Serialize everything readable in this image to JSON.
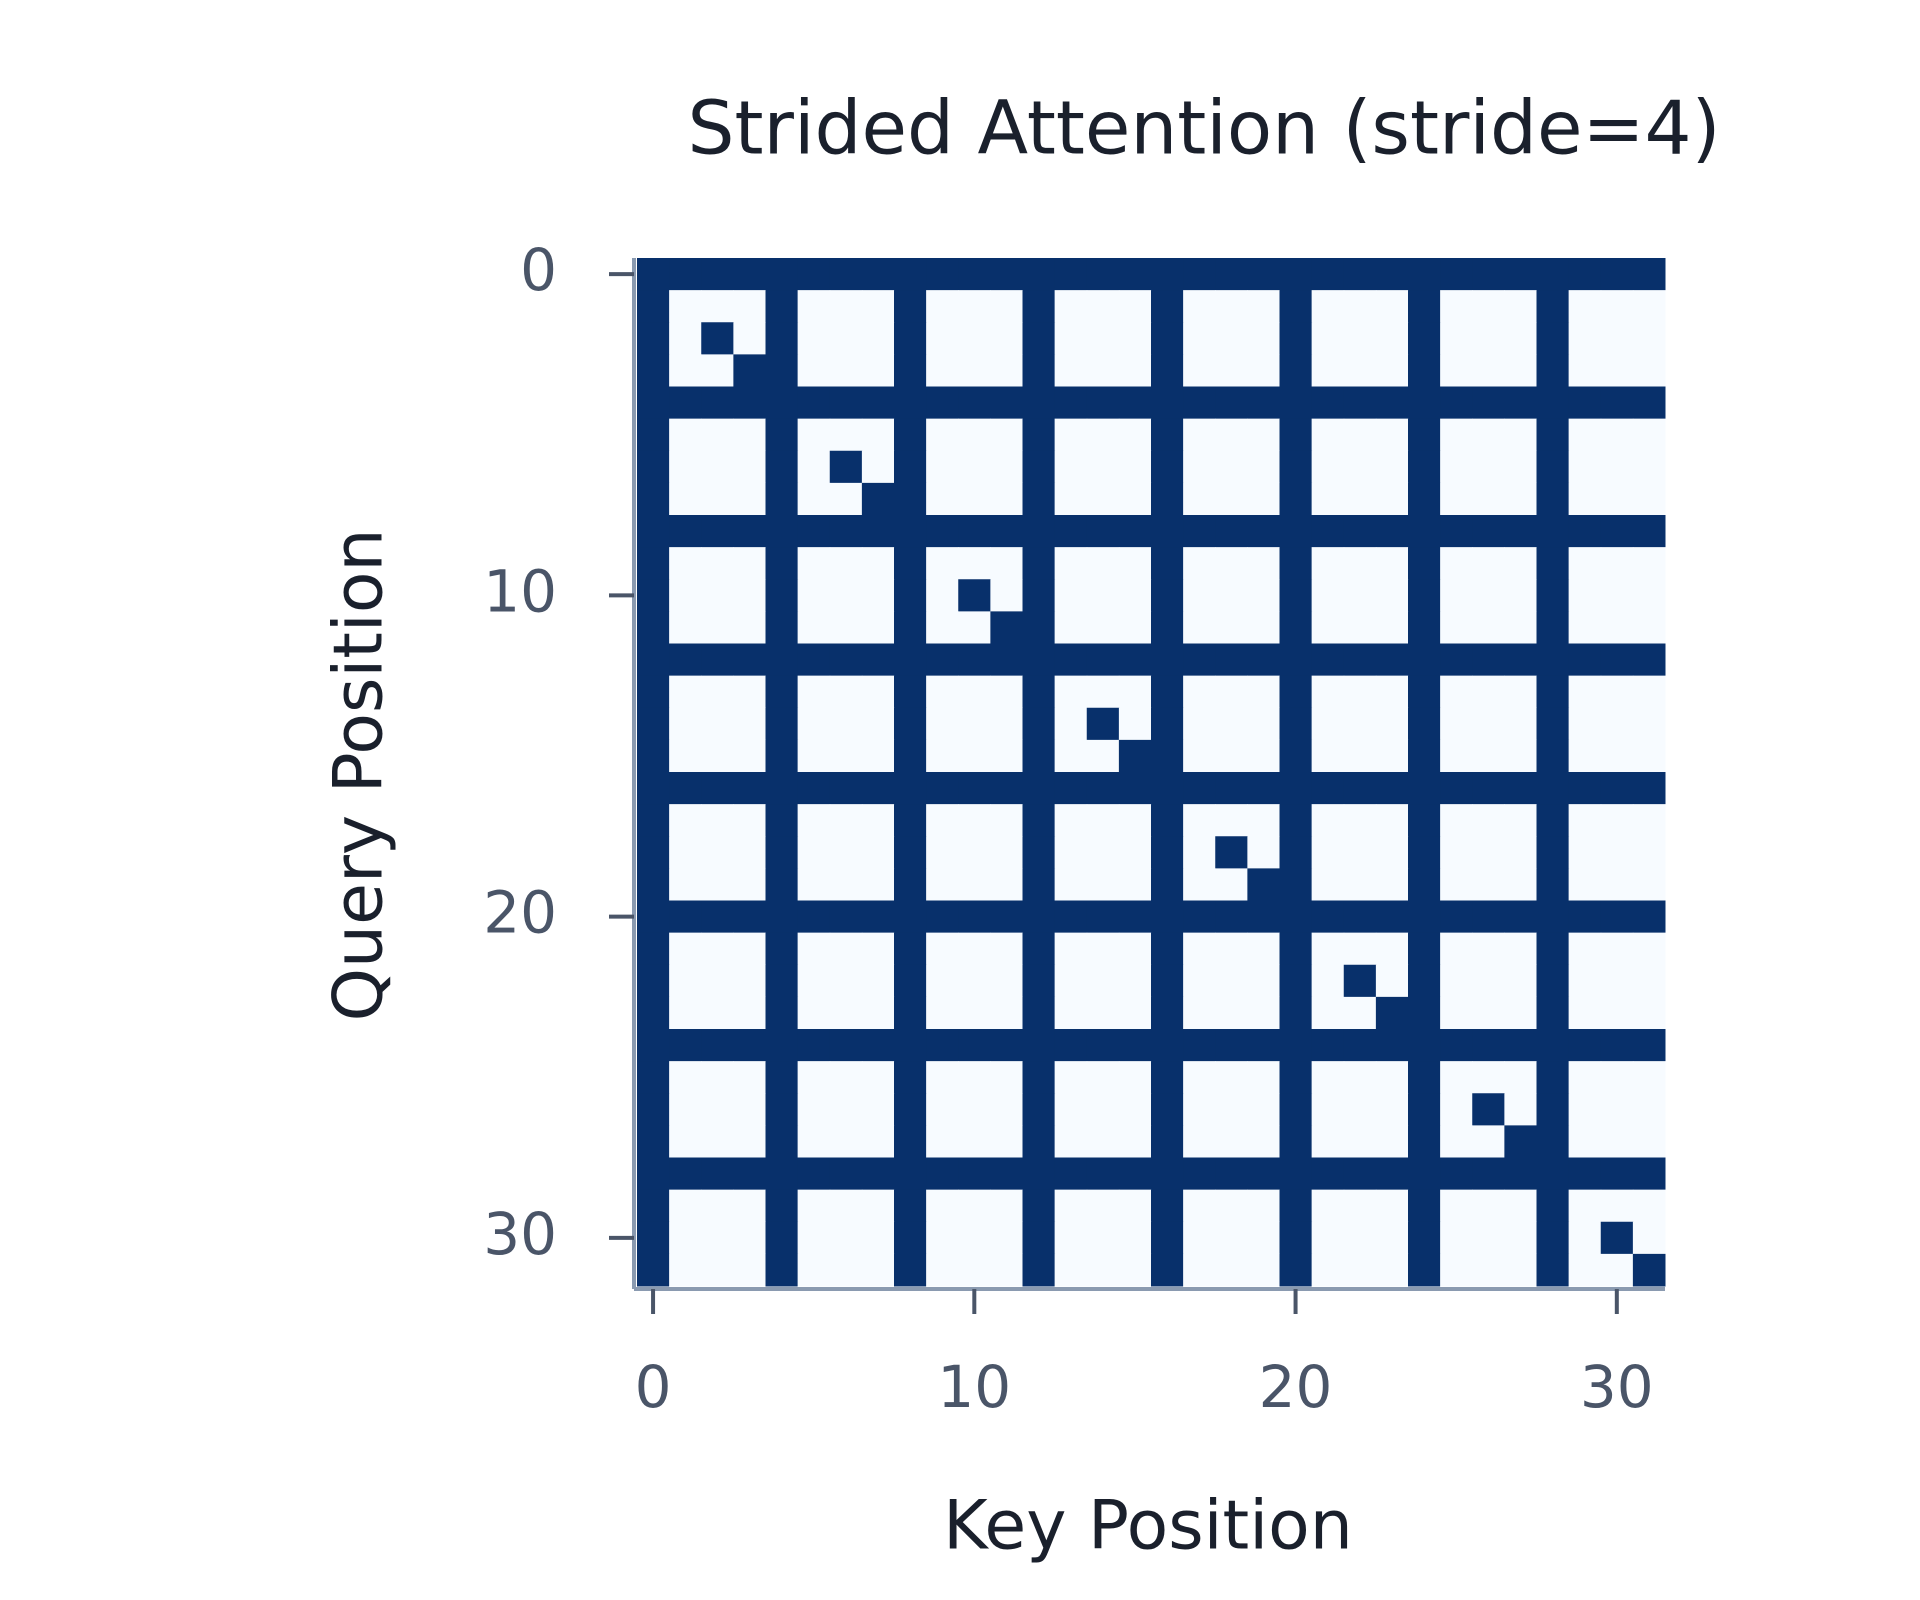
{
  "chart_data": {
    "type": "heatmap",
    "title": "Strided Attention (stride=4)",
    "x_label": "Key Position",
    "y_label": "Query Position",
    "xlim": [
      -0.5,
      31.5
    ],
    "ylim": [
      31.5,
      -0.5
    ],
    "xticks": [
      0,
      10,
      20,
      30
    ],
    "yticks": [
      0,
      10,
      20,
      30
    ],
    "colors": [
      "#f7fbff",
      "#08306b"
    ],
    "z": [
      [
        1,
        1,
        1,
        1,
        1,
        1,
        1,
        1,
        1,
        1,
        1,
        1,
        1,
        1,
        1,
        1,
        1,
        1,
        1,
        1,
        1,
        1,
        1,
        1,
        1,
        1,
        1,
        1,
        1,
        1,
        1,
        1
      ],
      [
        1,
        0,
        0,
        0,
        1,
        0,
        0,
        0,
        1,
        0,
        0,
        0,
        1,
        0,
        0,
        0,
        1,
        0,
        0,
        0,
        1,
        0,
        0,
        0,
        1,
        0,
        0,
        0,
        1,
        0,
        0,
        0
      ],
      [
        1,
        0,
        1,
        0,
        1,
        0,
        0,
        0,
        1,
        0,
        0,
        0,
        1,
        0,
        0,
        0,
        1,
        0,
        0,
        0,
        1,
        0,
        0,
        0,
        1,
        0,
        0,
        0,
        1,
        0,
        0,
        0
      ],
      [
        1,
        0,
        0,
        1,
        1,
        0,
        0,
        0,
        1,
        0,
        0,
        0,
        1,
        0,
        0,
        0,
        1,
        0,
        0,
        0,
        1,
        0,
        0,
        0,
        1,
        0,
        0,
        0,
        1,
        0,
        0,
        0
      ],
      [
        1,
        1,
        1,
        1,
        1,
        1,
        1,
        1,
        1,
        1,
        1,
        1,
        1,
        1,
        1,
        1,
        1,
        1,
        1,
        1,
        1,
        1,
        1,
        1,
        1,
        1,
        1,
        1,
        1,
        1,
        1,
        1
      ],
      [
        1,
        0,
        0,
        0,
        1,
        0,
        0,
        0,
        1,
        0,
        0,
        0,
        1,
        0,
        0,
        0,
        1,
        0,
        0,
        0,
        1,
        0,
        0,
        0,
        1,
        0,
        0,
        0,
        1,
        0,
        0,
        0
      ],
      [
        1,
        0,
        0,
        0,
        1,
        0,
        1,
        0,
        1,
        0,
        0,
        0,
        1,
        0,
        0,
        0,
        1,
        0,
        0,
        0,
        1,
        0,
        0,
        0,
        1,
        0,
        0,
        0,
        1,
        0,
        0,
        0
      ],
      [
        1,
        0,
        0,
        0,
        1,
        0,
        0,
        1,
        1,
        0,
        0,
        0,
        1,
        0,
        0,
        0,
        1,
        0,
        0,
        0,
        1,
        0,
        0,
        0,
        1,
        0,
        0,
        0,
        1,
        0,
        0,
        0
      ],
      [
        1,
        1,
        1,
        1,
        1,
        1,
        1,
        1,
        1,
        1,
        1,
        1,
        1,
        1,
        1,
        1,
        1,
        1,
        1,
        1,
        1,
        1,
        1,
        1,
        1,
        1,
        1,
        1,
        1,
        1,
        1,
        1
      ],
      [
        1,
        0,
        0,
        0,
        1,
        0,
        0,
        0,
        1,
        0,
        0,
        0,
        1,
        0,
        0,
        0,
        1,
        0,
        0,
        0,
        1,
        0,
        0,
        0,
        1,
        0,
        0,
        0,
        1,
        0,
        0,
        0
      ],
      [
        1,
        0,
        0,
        0,
        1,
        0,
        0,
        0,
        1,
        0,
        1,
        0,
        1,
        0,
        0,
        0,
        1,
        0,
        0,
        0,
        1,
        0,
        0,
        0,
        1,
        0,
        0,
        0,
        1,
        0,
        0,
        0
      ],
      [
        1,
        0,
        0,
        0,
        1,
        0,
        0,
        0,
        1,
        0,
        0,
        1,
        1,
        0,
        0,
        0,
        1,
        0,
        0,
        0,
        1,
        0,
        0,
        0,
        1,
        0,
        0,
        0,
        1,
        0,
        0,
        0
      ],
      [
        1,
        1,
        1,
        1,
        1,
        1,
        1,
        1,
        1,
        1,
        1,
        1,
        1,
        1,
        1,
        1,
        1,
        1,
        1,
        1,
        1,
        1,
        1,
        1,
        1,
        1,
        1,
        1,
        1,
        1,
        1,
        1
      ],
      [
        1,
        0,
        0,
        0,
        1,
        0,
        0,
        0,
        1,
        0,
        0,
        0,
        1,
        0,
        0,
        0,
        1,
        0,
        0,
        0,
        1,
        0,
        0,
        0,
        1,
        0,
        0,
        0,
        1,
        0,
        0,
        0
      ],
      [
        1,
        0,
        0,
        0,
        1,
        0,
        0,
        0,
        1,
        0,
        0,
        0,
        1,
        0,
        1,
        0,
        1,
        0,
        0,
        0,
        1,
        0,
        0,
        0,
        1,
        0,
        0,
        0,
        1,
        0,
        0,
        0
      ],
      [
        1,
        0,
        0,
        0,
        1,
        0,
        0,
        0,
        1,
        0,
        0,
        0,
        1,
        0,
        0,
        1,
        1,
        0,
        0,
        0,
        1,
        0,
        0,
        0,
        1,
        0,
        0,
        0,
        1,
        0,
        0,
        0
      ],
      [
        1,
        1,
        1,
        1,
        1,
        1,
        1,
        1,
        1,
        1,
        1,
        1,
        1,
        1,
        1,
        1,
        1,
        1,
        1,
        1,
        1,
        1,
        1,
        1,
        1,
        1,
        1,
        1,
        1,
        1,
        1,
        1
      ],
      [
        1,
        0,
        0,
        0,
        1,
        0,
        0,
        0,
        1,
        0,
        0,
        0,
        1,
        0,
        0,
        0,
        1,
        0,
        0,
        0,
        1,
        0,
        0,
        0,
        1,
        0,
        0,
        0,
        1,
        0,
        0,
        0
      ],
      [
        1,
        0,
        0,
        0,
        1,
        0,
        0,
        0,
        1,
        0,
        0,
        0,
        1,
        0,
        0,
        0,
        1,
        0,
        1,
        0,
        1,
        0,
        0,
        0,
        1,
        0,
        0,
        0,
        1,
        0,
        0,
        0
      ],
      [
        1,
        0,
        0,
        0,
        1,
        0,
        0,
        0,
        1,
        0,
        0,
        0,
        1,
        0,
        0,
        0,
        1,
        0,
        0,
        1,
        1,
        0,
        0,
        0,
        1,
        0,
        0,
        0,
        1,
        0,
        0,
        0
      ],
      [
        1,
        1,
        1,
        1,
        1,
        1,
        1,
        1,
        1,
        1,
        1,
        1,
        1,
        1,
        1,
        1,
        1,
        1,
        1,
        1,
        1,
        1,
        1,
        1,
        1,
        1,
        1,
        1,
        1,
        1,
        1,
        1
      ],
      [
        1,
        0,
        0,
        0,
        1,
        0,
        0,
        0,
        1,
        0,
        0,
        0,
        1,
        0,
        0,
        0,
        1,
        0,
        0,
        0,
        1,
        0,
        0,
        0,
        1,
        0,
        0,
        0,
        1,
        0,
        0,
        0
      ],
      [
        1,
        0,
        0,
        0,
        1,
        0,
        0,
        0,
        1,
        0,
        0,
        0,
        1,
        0,
        0,
        0,
        1,
        0,
        0,
        0,
        1,
        0,
        1,
        0,
        1,
        0,
        0,
        0,
        1,
        0,
        0,
        0
      ],
      [
        1,
        0,
        0,
        0,
        1,
        0,
        0,
        0,
        1,
        0,
        0,
        0,
        1,
        0,
        0,
        0,
        1,
        0,
        0,
        0,
        1,
        0,
        0,
        1,
        1,
        0,
        0,
        0,
        1,
        0,
        0,
        0
      ],
      [
        1,
        1,
        1,
        1,
        1,
        1,
        1,
        1,
        1,
        1,
        1,
        1,
        1,
        1,
        1,
        1,
        1,
        1,
        1,
        1,
        1,
        1,
        1,
        1,
        1,
        1,
        1,
        1,
        1,
        1,
        1,
        1
      ],
      [
        1,
        0,
        0,
        0,
        1,
        0,
        0,
        0,
        1,
        0,
        0,
        0,
        1,
        0,
        0,
        0,
        1,
        0,
        0,
        0,
        1,
        0,
        0,
        0,
        1,
        0,
        0,
        0,
        1,
        0,
        0,
        0
      ],
      [
        1,
        0,
        0,
        0,
        1,
        0,
        0,
        0,
        1,
        0,
        0,
        0,
        1,
        0,
        0,
        0,
        1,
        0,
        0,
        0,
        1,
        0,
        0,
        0,
        1,
        0,
        1,
        0,
        1,
        0,
        0,
        0
      ],
      [
        1,
        0,
        0,
        0,
        1,
        0,
        0,
        0,
        1,
        0,
        0,
        0,
        1,
        0,
        0,
        0,
        1,
        0,
        0,
        0,
        1,
        0,
        0,
        0,
        1,
        0,
        0,
        1,
        1,
        0,
        0,
        0
      ],
      [
        1,
        1,
        1,
        1,
        1,
        1,
        1,
        1,
        1,
        1,
        1,
        1,
        1,
        1,
        1,
        1,
        1,
        1,
        1,
        1,
        1,
        1,
        1,
        1,
        1,
        1,
        1,
        1,
        1,
        1,
        1,
        1
      ],
      [
        1,
        0,
        0,
        0,
        1,
        0,
        0,
        0,
        1,
        0,
        0,
        0,
        1,
        0,
        0,
        0,
        1,
        0,
        0,
        0,
        1,
        0,
        0,
        0,
        1,
        0,
        0,
        0,
        1,
        0,
        0,
        0
      ],
      [
        1,
        0,
        0,
        0,
        1,
        0,
        0,
        0,
        1,
        0,
        0,
        0,
        1,
        0,
        0,
        0,
        1,
        0,
        0,
        0,
        1,
        0,
        0,
        0,
        1,
        0,
        0,
        0,
        1,
        0,
        1,
        0
      ],
      [
        1,
        0,
        0,
        0,
        1,
        0,
        0,
        0,
        1,
        0,
        0,
        0,
        1,
        0,
        0,
        0,
        1,
        0,
        0,
        0,
        1,
        0,
        0,
        0,
        1,
        0,
        0,
        0,
        1,
        0,
        0,
        1
      ]
    ]
  }
}
